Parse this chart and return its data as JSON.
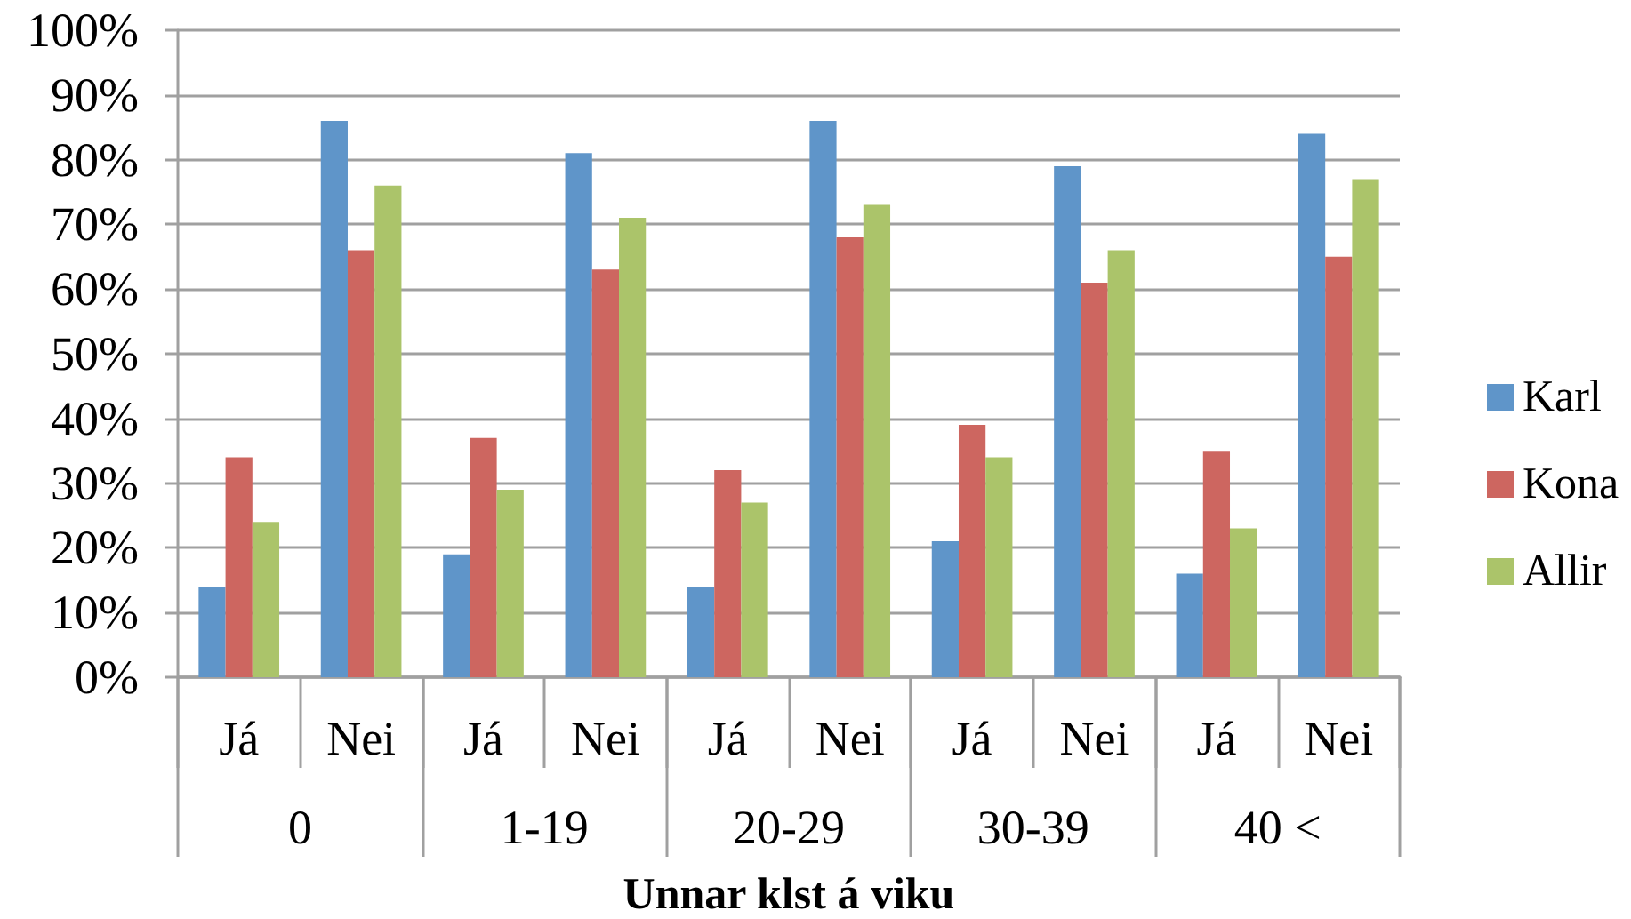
{
  "chart_data": {
    "type": "bar",
    "categories": [
      "Já",
      "Nei",
      "Já",
      "Nei",
      "Já",
      "Nei",
      "Já",
      "Nei",
      "Já",
      "Nei"
    ],
    "annotations": [
      "0",
      "1-19",
      "20-29",
      "30-39",
      "40 <"
    ],
    "xlabel": "Unnar klst á viku",
    "series": [
      {
        "name": "Karl",
        "color": "#5f95c9",
        "values": [
          14,
          86,
          19,
          81,
          14,
          86,
          21,
          79,
          16,
          84
        ]
      },
      {
        "name": "Kona",
        "color": "#cd6660",
        "values": [
          34,
          66,
          37,
          63,
          32,
          68,
          39,
          61,
          35,
          65
        ]
      },
      {
        "name": "Allir",
        "color": "#abc46a",
        "values": [
          24,
          76,
          29,
          71,
          27,
          73,
          34,
          66,
          23,
          77
        ]
      }
    ],
    "ylim": [
      0,
      100
    ],
    "yticks": [
      {
        "value": 0,
        "label": "0%"
      },
      {
        "value": 10,
        "label": "10%"
      },
      {
        "value": 20,
        "label": "20%"
      },
      {
        "value": 30,
        "label": "30%"
      },
      {
        "value": 40,
        "label": "40%"
      },
      {
        "value": 50,
        "label": "50%"
      },
      {
        "value": 60,
        "label": "60%"
      },
      {
        "value": 70,
        "label": "70%"
      },
      {
        "value": 80,
        "label": "80%"
      },
      {
        "value": 90,
        "label": "90%"
      },
      {
        "value": 100,
        "label": "100%"
      }
    ],
    "grid": "y",
    "legend": "right"
  }
}
